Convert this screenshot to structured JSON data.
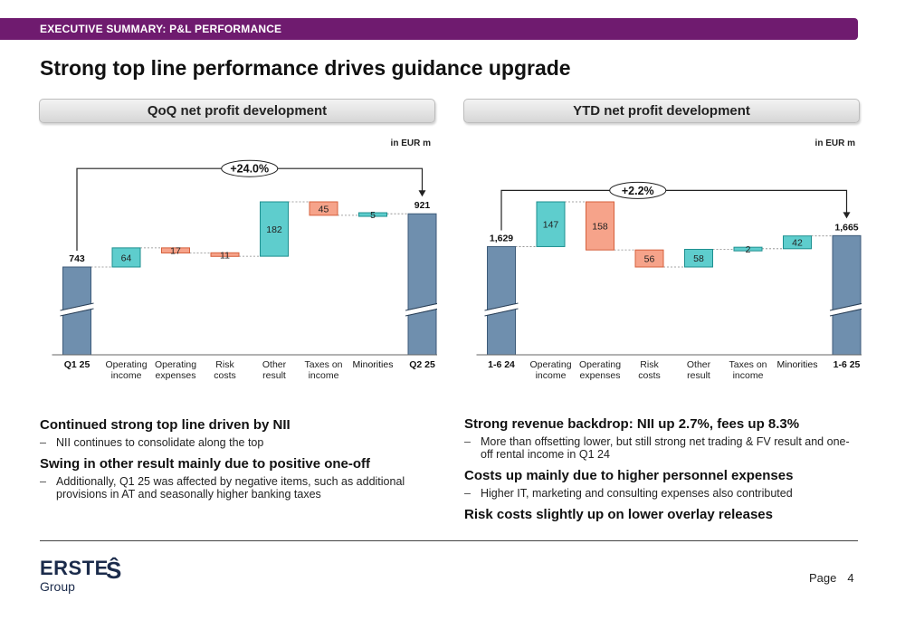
{
  "header": {
    "section_label": "EXECUTIVE SUMMARY: P&L PERFORMANCE"
  },
  "title": "Strong top line performance drives guidance upgrade",
  "footer": {
    "logo_text": "ERSTE",
    "logo_sub": "Group",
    "page_label": "Page",
    "page_number": "4"
  },
  "colors": {
    "brand": "#6f1b6f",
    "total": "#6f8fae",
    "positive": "#5ecdcd",
    "negative": "#f6a38a"
  },
  "chart_data": [
    {
      "type": "waterfall",
      "title": "QoQ net profit development",
      "unit_label": "in EUR m",
      "categories": [
        "Q1 25",
        "Operating income",
        "Operating expenses",
        "Risk costs",
        "Other result",
        "Taxes on income",
        "Minorities",
        "Q2 25"
      ],
      "values": [
        743,
        64,
        -17,
        -11,
        182,
        -45,
        5,
        921
      ],
      "labels": [
        "743",
        "64",
        "17",
        "11",
        "182",
        "45",
        "5",
        "921"
      ],
      "kinds": [
        "total",
        "pos",
        "neg",
        "neg",
        "pos",
        "neg",
        "pos",
        "total"
      ],
      "change_label": "+24.0%",
      "axis_break": true
    },
    {
      "type": "waterfall",
      "title": "YTD net profit development",
      "unit_label": "in EUR m",
      "categories": [
        "1-6 24",
        "Operating income",
        "Operating expenses",
        "Risk costs",
        "Other result",
        "Taxes on income",
        "Minorities",
        "1-6 25"
      ],
      "values": [
        1629,
        147,
        -158,
        -56,
        58,
        2,
        42,
        1665
      ],
      "labels": [
        "1,629",
        "147",
        "158",
        "56",
        "58",
        "2",
        "42",
        "1,665"
      ],
      "kinds": [
        "total",
        "pos",
        "neg",
        "neg",
        "pos",
        "pos",
        "pos",
        "total"
      ],
      "change_label": "+2.2%",
      "axis_break": true
    }
  ],
  "left_text": [
    {
      "heading": "Continued strong top line driven by NII",
      "items": [
        "NII continues to consolidate along the top"
      ]
    },
    {
      "heading": "Swing in other result mainly due to positive one-off",
      "items": [
        "Additionally, Q1 25 was affected by negative items, such as additional provisions in AT and seasonally higher banking taxes"
      ]
    }
  ],
  "right_text": [
    {
      "heading": "Strong revenue backdrop: NII up 2.7%, fees up 8.3%",
      "items": [
        "More than offsetting lower, but still strong net trading & FV result and one-off rental income in Q1 24"
      ]
    },
    {
      "heading": "Costs up mainly due to higher personnel expenses",
      "items": [
        "Higher IT, marketing and consulting expenses also contributed"
      ]
    },
    {
      "heading": "Risk costs slightly up on lower overlay releases",
      "items": []
    }
  ]
}
